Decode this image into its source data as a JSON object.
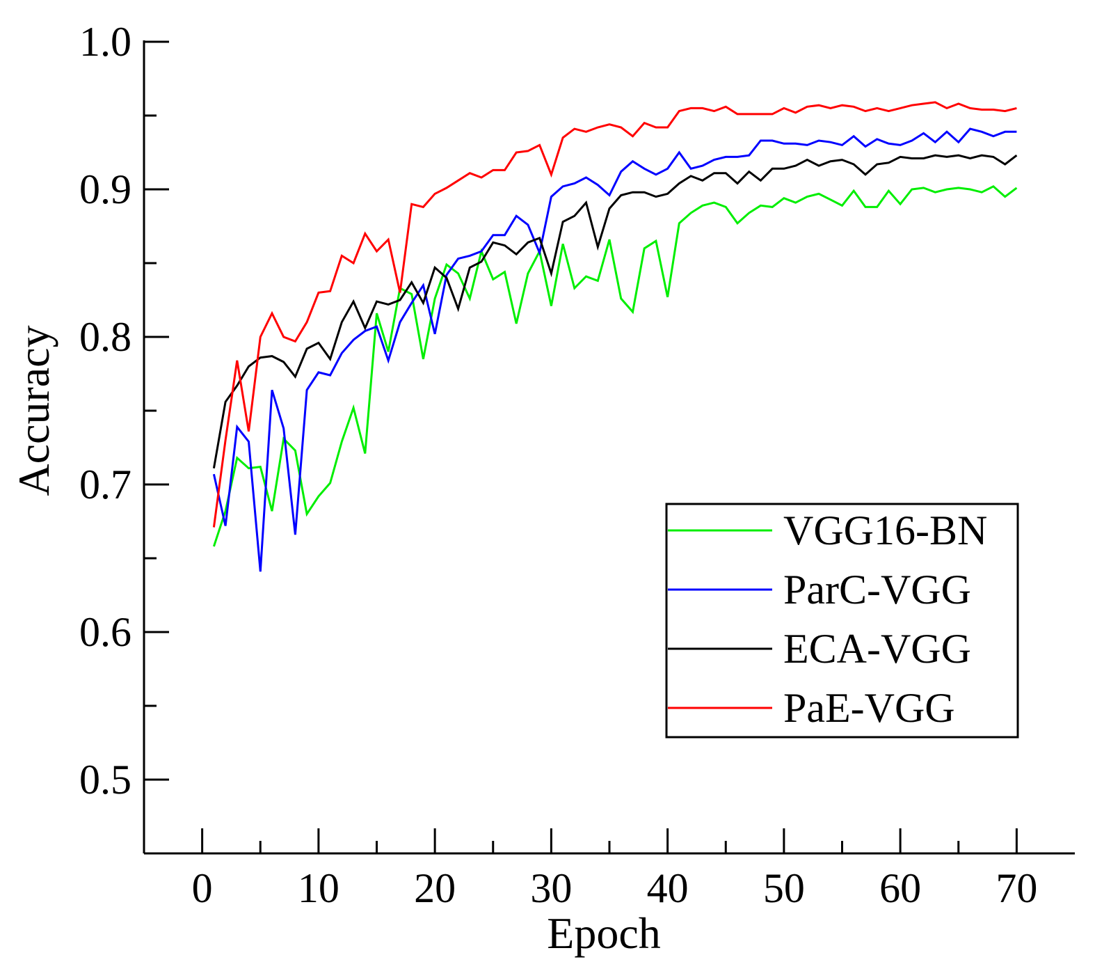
{
  "chart_data": {
    "type": "line",
    "title": "",
    "xlabel": "Epoch",
    "ylabel": "Accuracy",
    "xlim": [
      -5,
      75
    ],
    "ylim": [
      0.45,
      1.0
    ],
    "xticks": [
      0,
      10,
      20,
      30,
      40,
      50,
      60,
      70
    ],
    "xtick_labels": [
      "0",
      "10",
      "20",
      "30",
      "40",
      "50",
      "60",
      "70"
    ],
    "yticks": [
      0.5,
      0.6,
      0.7,
      0.8,
      0.9,
      1.0
    ],
    "ytick_labels": [
      "0.5",
      "0.6",
      "0.7",
      "0.8",
      "0.9",
      "1.0"
    ],
    "legend_position": "bottom-right",
    "grid": false,
    "x": [
      1,
      2,
      3,
      4,
      5,
      6,
      7,
      8,
      9,
      10,
      11,
      12,
      13,
      14,
      15,
      16,
      17,
      18,
      19,
      20,
      21,
      22,
      23,
      24,
      25,
      26,
      27,
      28,
      29,
      30,
      31,
      32,
      33,
      34,
      35,
      36,
      37,
      38,
      39,
      40,
      41,
      42,
      43,
      44,
      45,
      46,
      47,
      48,
      49,
      50,
      51,
      52,
      53,
      54,
      55,
      56,
      57,
      58,
      59,
      60,
      61,
      62,
      63,
      64,
      65,
      66,
      67,
      68,
      69,
      70
    ],
    "series": [
      {
        "name": "VGG16-BN",
        "color": "#00ee00",
        "values": [
          0.658,
          0.682,
          0.718,
          0.711,
          0.712,
          0.682,
          0.731,
          0.723,
          0.68,
          0.692,
          0.701,
          0.729,
          0.752,
          0.721,
          0.816,
          0.79,
          0.833,
          0.829,
          0.785,
          0.826,
          0.849,
          0.843,
          0.826,
          0.858,
          0.839,
          0.844,
          0.809,
          0.843,
          0.858,
          0.821,
          0.863,
          0.833,
          0.841,
          0.838,
          0.866,
          0.826,
          0.817,
          0.86,
          0.865,
          0.827,
          0.877,
          0.884,
          0.889,
          0.891,
          0.888,
          0.877,
          0.884,
          0.889,
          0.888,
          0.894,
          0.891,
          0.895,
          0.897,
          0.893,
          0.889,
          0.899,
          0.888,
          0.888,
          0.899,
          0.89,
          0.9,
          0.901,
          0.898,
          0.9,
          0.901,
          0.9,
          0.898,
          0.902,
          0.895,
          0.901
        ]
      },
      {
        "name": "ParC-VGG",
        "color": "#0000ff",
        "values": [
          0.707,
          0.672,
          0.739,
          0.729,
          0.641,
          0.764,
          0.738,
          0.666,
          0.764,
          0.776,
          0.774,
          0.789,
          0.798,
          0.804,
          0.807,
          0.784,
          0.81,
          0.823,
          0.835,
          0.802,
          0.842,
          0.853,
          0.855,
          0.858,
          0.869,
          0.869,
          0.882,
          0.876,
          0.857,
          0.895,
          0.902,
          0.904,
          0.908,
          0.903,
          0.896,
          0.912,
          0.919,
          0.914,
          0.91,
          0.914,
          0.925,
          0.914,
          0.916,
          0.92,
          0.922,
          0.922,
          0.923,
          0.933,
          0.933,
          0.931,
          0.931,
          0.93,
          0.933,
          0.932,
          0.93,
          0.936,
          0.929,
          0.934,
          0.931,
          0.93,
          0.933,
          0.938,
          0.932,
          0.939,
          0.932,
          0.941,
          0.939,
          0.936,
          0.939,
          0.939
        ]
      },
      {
        "name": "ECA-VGG",
        "color": "#000000",
        "values": [
          0.711,
          0.756,
          0.767,
          0.78,
          0.786,
          0.787,
          0.783,
          0.773,
          0.792,
          0.796,
          0.785,
          0.81,
          0.824,
          0.806,
          0.824,
          0.822,
          0.825,
          0.837,
          0.823,
          0.847,
          0.84,
          0.819,
          0.847,
          0.851,
          0.864,
          0.862,
          0.856,
          0.864,
          0.867,
          0.843,
          0.878,
          0.882,
          0.891,
          0.861,
          0.887,
          0.896,
          0.898,
          0.898,
          0.895,
          0.897,
          0.904,
          0.909,
          0.906,
          0.911,
          0.911,
          0.904,
          0.912,
          0.906,
          0.914,
          0.914,
          0.916,
          0.92,
          0.916,
          0.919,
          0.92,
          0.917,
          0.91,
          0.917,
          0.918,
          0.922,
          0.921,
          0.921,
          0.923,
          0.922,
          0.923,
          0.921,
          0.923,
          0.922,
          0.917,
          0.923
        ]
      },
      {
        "name": "PaE-VGG",
        "color": "#ff0000",
        "values": [
          0.671,
          0.73,
          0.784,
          0.736,
          0.8,
          0.816,
          0.8,
          0.797,
          0.81,
          0.83,
          0.831,
          0.855,
          0.85,
          0.87,
          0.858,
          0.866,
          0.83,
          0.89,
          0.888,
          0.897,
          0.901,
          0.906,
          0.911,
          0.908,
          0.913,
          0.913,
          0.925,
          0.926,
          0.93,
          0.91,
          0.935,
          0.941,
          0.939,
          0.942,
          0.944,
          0.942,
          0.936,
          0.945,
          0.942,
          0.942,
          0.953,
          0.955,
          0.955,
          0.953,
          0.956,
          0.951,
          0.951,
          0.951,
          0.951,
          0.955,
          0.952,
          0.956,
          0.957,
          0.955,
          0.957,
          0.956,
          0.953,
          0.955,
          0.953,
          0.955,
          0.957,
          0.958,
          0.959,
          0.955,
          0.958,
          0.955,
          0.954,
          0.954,
          0.953,
          0.955
        ]
      }
    ]
  }
}
